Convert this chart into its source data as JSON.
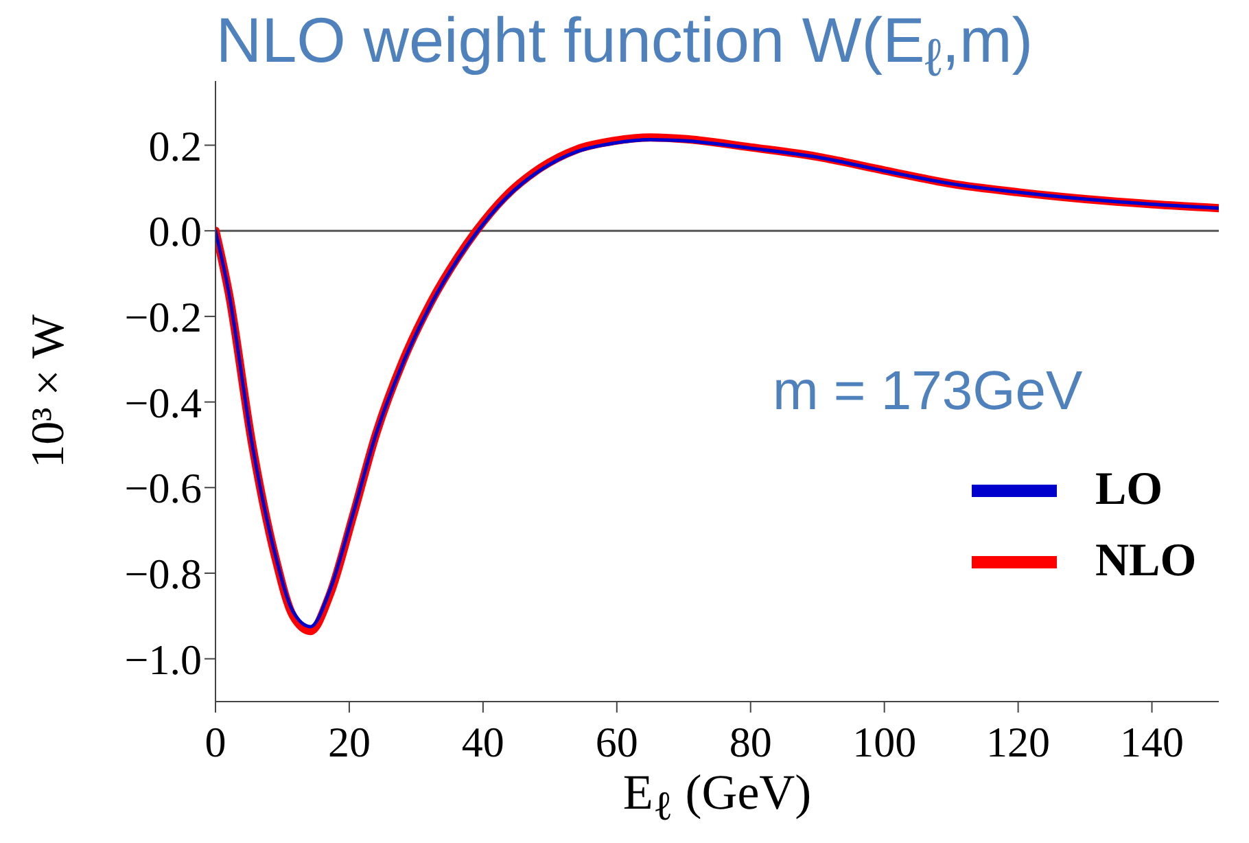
{
  "chart_data": {
    "type": "line",
    "title": "NLO weight function W(E$_{ℓ}$,m)",
    "xlabel": "E$_{ℓ}$ (GeV)",
    "ylabel": "10³ × W",
    "annotations": [
      "m = 173GeV"
    ],
    "xlim": [
      0,
      150
    ],
    "xticks": [
      0,
      20,
      40,
      60,
      80,
      100,
      120,
      140
    ],
    "ylim": [
      -1.1,
      0.35
    ],
    "yticks": [
      {
        "value": -1,
        "label": "−1.0"
      },
      {
        "value": -0.8,
        "label": "−0.8"
      },
      {
        "value": -0.6,
        "label": "−0.6"
      },
      {
        "value": -0.4,
        "label": "−0.4"
      },
      {
        "value": -0.2,
        "label": "−0.2"
      },
      {
        "value": 0,
        "label": "0.0"
      },
      {
        "value": 0.2,
        "label": "0.2"
      }
    ],
    "x": [
      0,
      2,
      5.5,
      8.9,
      11.6,
      14.2,
      17.1,
      20.5,
      24,
      28,
      32.2,
      36.3,
      39,
      43.2,
      48.6,
      54,
      59.6,
      65,
      70.5,
      80,
      90,
      100,
      110,
      120,
      130,
      140,
      150
    ],
    "series": [
      {
        "name": "LO",
        "color": "#0000cc",
        "values": [
          0,
          -0.145,
          -0.5,
          -0.755,
          -0.89,
          -0.925,
          -0.84,
          -0.665,
          -0.475,
          -0.31,
          -0.172,
          -0.065,
          -0.005,
          0.073,
          0.142,
          0.185,
          0.205,
          0.213,
          0.21,
          0.193,
          0.172,
          0.14,
          0.11,
          0.09,
          0.074,
          0.062,
          0.053
        ]
      },
      {
        "name": "NLO",
        "color": "#ff0000",
        "values": [
          0,
          -0.146,
          -0.5,
          -0.76,
          -0.9,
          -0.935,
          -0.85,
          -0.67,
          -0.475,
          -0.305,
          -0.167,
          -0.06,
          0,
          0.078,
          0.147,
          0.19,
          0.21,
          0.218,
          0.214,
          0.195,
          0.173,
          0.141,
          0.11,
          0.09,
          0.074,
          0.062,
          0.053
        ]
      }
    ],
    "ref_lines": [
      {
        "axis": "y",
        "value": 0,
        "color": "#555555"
      }
    ],
    "legend": "right",
    "grid": false,
    "marker": "none",
    "line_style": "solid"
  }
}
